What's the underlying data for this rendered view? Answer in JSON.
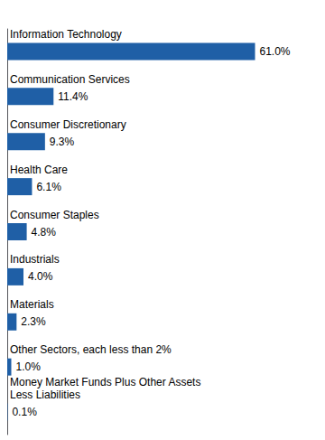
{
  "chart_data": {
    "type": "bar",
    "orientation": "horizontal",
    "categories": [
      "Information Technology",
      "Communication Services",
      "Consumer Discretionary",
      "Health Care",
      "Consumer Staples",
      "Industrials",
      "Materials",
      "Other Sectors, each less than 2%",
      "Money Market Funds Plus Other Assets\nLess Liabilities"
    ],
    "values": [
      61.0,
      11.4,
      9.3,
      6.1,
      4.8,
      4.0,
      2.3,
      1.0,
      0.1
    ],
    "value_labels": [
      "61.0%",
      "11.4%",
      "9.3%",
      "6.1%",
      "4.8%",
      "4.0%",
      "2.3%",
      "1.0%",
      "0.1%"
    ],
    "data_labels": true,
    "color": "#1f5fa6",
    "xlim": [
      0,
      68
    ],
    "tick_labels": false,
    "grid": false
  }
}
